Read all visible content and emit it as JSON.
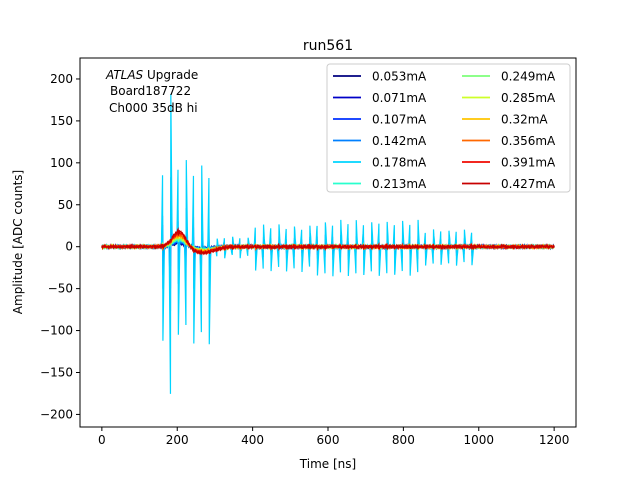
{
  "chart_data": {
    "type": "line",
    "title": "run561",
    "xlabel": "Time [ns]",
    "ylabel": "Amplitude [ADC counts]",
    "xlim": [
      -58,
      1258
    ],
    "ylim": [
      -215,
      225
    ],
    "xticks": [
      0,
      200,
      400,
      600,
      800,
      1000,
      1200
    ],
    "yticks": [
      -200,
      -150,
      -100,
      -50,
      0,
      50,
      100,
      150,
      200
    ],
    "annotation": {
      "italic": "ATLAS",
      "line1_rest": " Upgrade",
      "line2": "Board187722",
      "line3": "Ch000 35dB hi"
    },
    "legend_position": "top-right",
    "x_range_ns": [
      0,
      1200
    ],
    "series": [
      {
        "name": "0.053mA",
        "color": "#00007f",
        "pulse_peak": 4,
        "cross_talk_amp": 6,
        "spike_amp": 12
      },
      {
        "name": "0.071mA",
        "color": "#0000c8",
        "pulse_peak": 5,
        "cross_talk_amp": 10,
        "spike_amp": 30
      },
      {
        "name": "0.107mA",
        "color": "#0030ff",
        "pulse_peak": 6,
        "cross_talk_amp": 12,
        "spike_amp": 60
      },
      {
        "name": "0.142mA",
        "color": "#0080ff",
        "pulse_peak": 7,
        "cross_talk_amp": 14,
        "spike_amp": 90
      },
      {
        "name": "0.178mA",
        "color": "#00d4ff",
        "pulse_peak": 8,
        "cross_talk_amp": 36,
        "spike_amp": 205
      },
      {
        "name": "0.213mA",
        "color": "#29ffce",
        "pulse_peak": 9,
        "cross_talk_amp": 2,
        "spike_amp": 0
      },
      {
        "name": "0.249mA",
        "color": "#7dff7a",
        "pulse_peak": 10,
        "cross_talk_amp": 2,
        "spike_amp": 0
      },
      {
        "name": "0.285mA",
        "color": "#ceff29",
        "pulse_peak": 12,
        "cross_talk_amp": 2,
        "spike_amp": 0
      },
      {
        "name": "0.32mA",
        "color": "#ffc400",
        "pulse_peak": 13,
        "cross_talk_amp": 2,
        "spike_amp": 0
      },
      {
        "name": "0.356mA",
        "color": "#ff6800",
        "pulse_peak": 15,
        "cross_talk_amp": 2,
        "spike_amp": 0
      },
      {
        "name": "0.391mA",
        "color": "#f10800",
        "pulse_peak": 17,
        "cross_talk_amp": 2,
        "spike_amp": 0
      },
      {
        "name": "0.427mA",
        "color": "#c80000",
        "pulse_peak": 19,
        "cross_talk_amp": 2,
        "spike_amp": 0
      }
    ]
  }
}
